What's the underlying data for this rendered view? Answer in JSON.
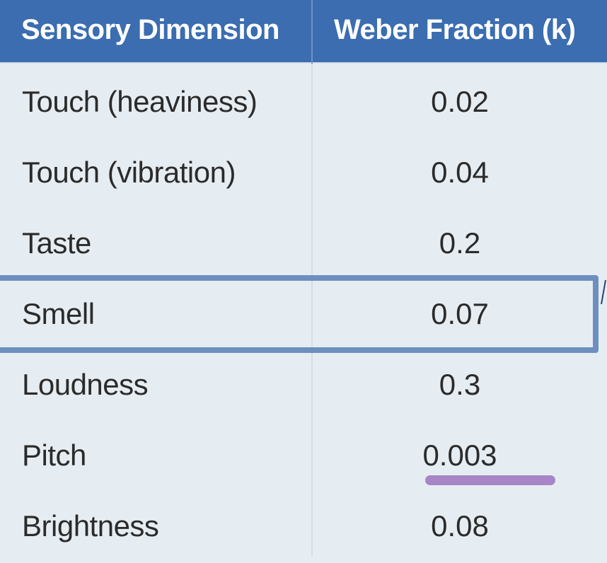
{
  "table": {
    "headers": {
      "dimension": "Sensory Dimension",
      "fraction": "Weber Fraction (k)"
    },
    "rows": [
      {
        "dimension": "Touch (heaviness)",
        "fraction": "0.02"
      },
      {
        "dimension": "Touch (vibration)",
        "fraction": "0.04"
      },
      {
        "dimension": "Taste",
        "fraction": "0.2"
      },
      {
        "dimension": "Smell",
        "fraction": "0.07",
        "highlighted": true
      },
      {
        "dimension": "Loudness",
        "fraction": "0.3"
      },
      {
        "dimension": "Pitch",
        "fraction": "0.003",
        "underlined": true
      },
      {
        "dimension": "Brightness",
        "fraction": "0.08"
      }
    ]
  },
  "colors": {
    "header_bg": "#3b6db0",
    "header_text": "#ffffff",
    "body_bg": "#e6edf2",
    "body_text": "#2b2b2b",
    "highlight_box": "#6d8fc0",
    "underline_mark": "#a785c6"
  }
}
